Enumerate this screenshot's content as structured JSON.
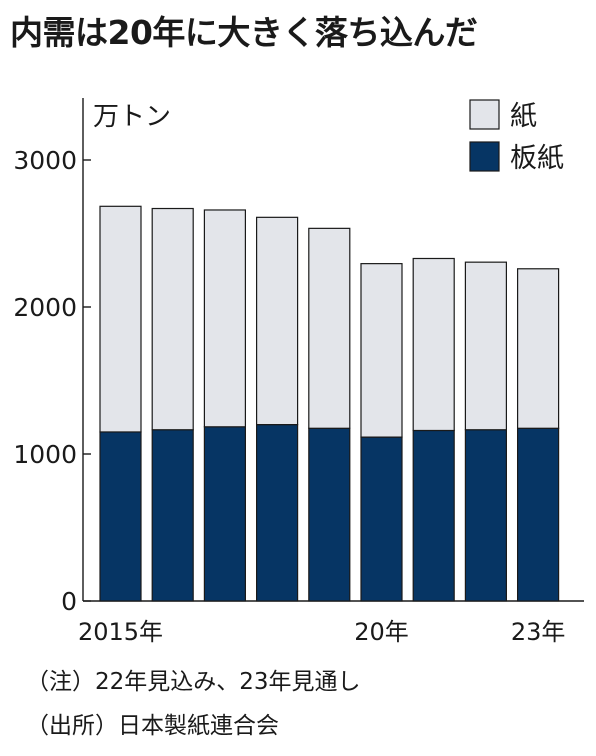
{
  "title": "内需は20年に大きく落ち込んだ",
  "notes": {
    "note": "（注）22年見込み、23年見通し",
    "source": "（出所）日本製紙連合会"
  },
  "chart_data": {
    "type": "bar",
    "stacked": true,
    "ylabel": "万トン",
    "ylim": [
      0,
      3000
    ],
    "yticks": [
      "0",
      "1000",
      "2000",
      "3000"
    ],
    "categories": [
      "2015",
      "2016",
      "2017",
      "2018",
      "2019",
      "2020",
      "2021",
      "2022",
      "2023"
    ],
    "x_tick_labels": [
      {
        "category_index": 0,
        "label": "2015年"
      },
      {
        "category_index": 5,
        "label": "20年"
      },
      {
        "category_index": 8,
        "label": "23年"
      }
    ],
    "series": [
      {
        "name": "板紙",
        "color": "#063564",
        "values": [
          1150,
          1165,
          1185,
          1200,
          1175,
          1115,
          1160,
          1165,
          1175
        ]
      },
      {
        "name": "紙",
        "color": "#e3e5ea",
        "values": [
          1535,
          1505,
          1475,
          1410,
          1360,
          1180,
          1170,
          1140,
          1085
        ]
      }
    ],
    "legend": {
      "position": "top-right",
      "entries": [
        {
          "label": "紙",
          "color": "#e3e5ea"
        },
        {
          "label": "板紙",
          "color": "#063564"
        }
      ]
    },
    "grid": false
  }
}
